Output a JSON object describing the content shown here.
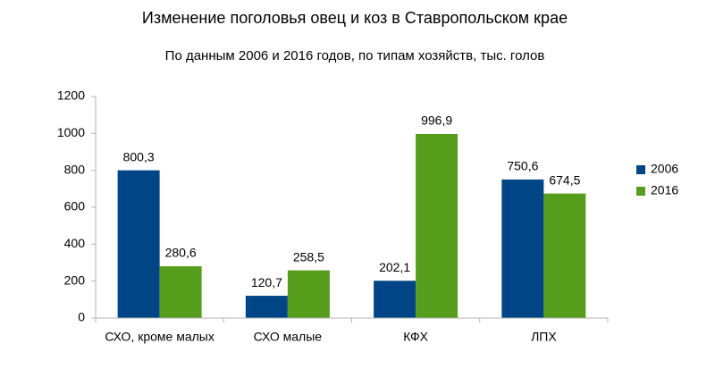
{
  "chart_data": {
    "type": "bar",
    "title": "Изменение поголовья овец и коз в Ставропольском крае",
    "subtitle": "По данным 2006 и 2016 годов, по типам хозяйств, тыс. голов",
    "categories": [
      "СХО, кроме малых",
      "СХО малые",
      "КФХ",
      "ЛПХ"
    ],
    "series": [
      {
        "name": "2006",
        "color": "#004586",
        "values": [
          800.3,
          120.7,
          202.1,
          750.6
        ],
        "value_labels": [
          "800,3",
          "120,7",
          "202,1",
          "750,6"
        ]
      },
      {
        "name": "2016",
        "color": "#579d1c",
        "values": [
          280.6,
          258.5,
          996.9,
          674.5
        ],
        "value_labels": [
          "280,6",
          "258,5",
          "996,9",
          "674,5"
        ]
      }
    ],
    "ylim": [
      0,
      1200
    ],
    "yticks": [
      0,
      200,
      400,
      600,
      800,
      1000,
      1200
    ],
    "grid": false,
    "legend": "right"
  }
}
